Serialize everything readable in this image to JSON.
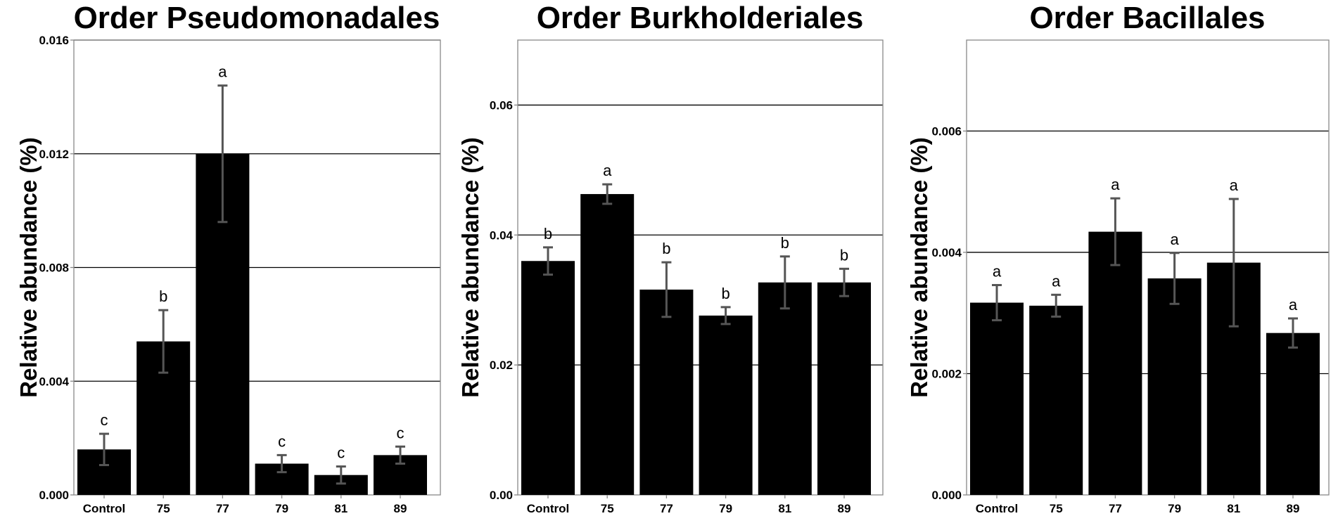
{
  "chart_data": [
    {
      "type": "bar",
      "title": "Order Pseudomonadales",
      "ylabel": "Relative abundance (%)",
      "xlabel": "",
      "categories": [
        "Control",
        "75",
        "77",
        "79",
        "81",
        "89"
      ],
      "values": [
        0.0016,
        0.0054,
        0.012,
        0.0011,
        0.0007,
        0.0014
      ],
      "errors": [
        0.00055,
        0.0011,
        0.0024,
        0.0003,
        0.0003,
        0.0003
      ],
      "letters": [
        "c",
        "b",
        "a",
        "c",
        "c",
        "c"
      ],
      "ylim": [
        0,
        0.016
      ],
      "yticks": [
        0,
        0.004,
        0.008,
        0.012,
        0.016
      ],
      "ytick_labels": [
        "0.000",
        "0.004",
        "0.008",
        "0.012",
        "0.016"
      ],
      "grid": true
    },
    {
      "type": "bar",
      "title": "Order Burkholderiales",
      "ylabel": "Relative abundance (%)",
      "xlabel": "",
      "categories": [
        "Control",
        "75",
        "77",
        "79",
        "81",
        "89"
      ],
      "values": [
        0.036,
        0.0463,
        0.0316,
        0.0276,
        0.0327,
        0.0327
      ],
      "errors": [
        0.0021,
        0.0015,
        0.0042,
        0.0013,
        0.004,
        0.0021
      ],
      "letters": [
        "b",
        "a",
        "b",
        "b",
        "b",
        "b"
      ],
      "ylim": [
        0,
        0.07
      ],
      "yticks": [
        0,
        0.02,
        0.04,
        0.06
      ],
      "ytick_labels": [
        "0.00",
        "0.02",
        "0.04",
        "0.06"
      ],
      "grid": true
    },
    {
      "type": "bar",
      "title": "Order Bacillales",
      "ylabel": "Relative abundance (%)",
      "xlabel": "",
      "categories": [
        "Control",
        "75",
        "77",
        "79",
        "81",
        "89"
      ],
      "values": [
        0.00317,
        0.00312,
        0.00434,
        0.00357,
        0.00383,
        0.00267
      ],
      "errors": [
        0.00029,
        0.00018,
        0.00055,
        0.00042,
        0.00105,
        0.00024
      ],
      "letters": [
        "a",
        "a",
        "a",
        "a",
        "a",
        "a"
      ],
      "ylim": [
        0,
        0.0075
      ],
      "yticks": [
        0,
        0.002,
        0.004,
        0.006
      ],
      "ytick_labels": [
        "0.000",
        "0.002",
        "0.004",
        "0.006"
      ],
      "grid": true
    }
  ],
  "colors": {
    "bar": "#000000",
    "error_bar": "#555555",
    "grid": "#000000",
    "frame": "#888888"
  }
}
